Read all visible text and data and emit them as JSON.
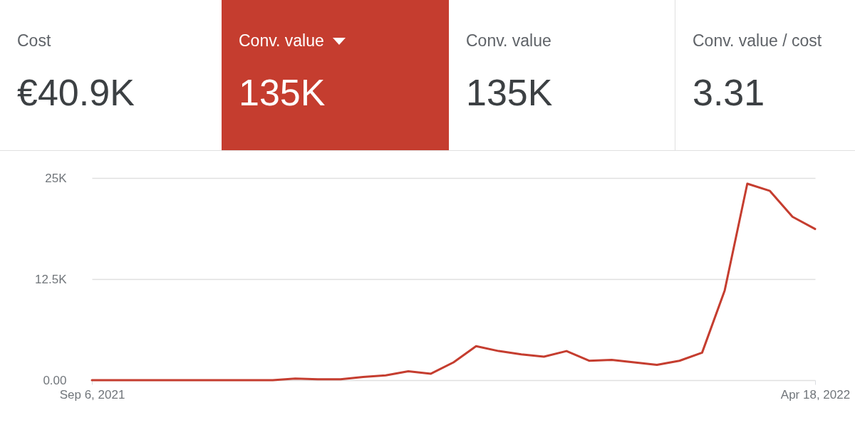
{
  "chart_data": [
    {
      "type": "other",
      "title": "Cost",
      "annotations": [
        "€40.9K"
      ]
    },
    {
      "type": "other",
      "title": "Conv. value",
      "annotations": [
        "135K"
      ],
      "color": "#c53d2f"
    },
    {
      "type": "other",
      "title": "Conv. value",
      "annotations": [
        "135K"
      ]
    },
    {
      "type": "other",
      "title": "Conv. value / cost",
      "annotations": [
        "3.31"
      ]
    },
    {
      "type": "line",
      "x": [
        "2021-09-06",
        "2021-09-13",
        "2021-09-20",
        "2021-09-27",
        "2021-10-04",
        "2021-10-11",
        "2021-10-18",
        "2021-10-25",
        "2021-11-01",
        "2021-11-08",
        "2021-11-15",
        "2021-11-22",
        "2021-11-29",
        "2021-12-06",
        "2021-12-13",
        "2021-12-20",
        "2021-12-27",
        "2022-01-03",
        "2022-01-10",
        "2022-01-17",
        "2022-01-24",
        "2022-01-31",
        "2022-02-07",
        "2022-02-14",
        "2022-02-21",
        "2022-02-28",
        "2022-03-07",
        "2022-03-14",
        "2022-03-21",
        "2022-03-28",
        "2022-04-04",
        "2022-04-11",
        "2022-04-18"
      ],
      "series": [
        {
          "color": "#c53d2f",
          "values": [
            0,
            0,
            0,
            0,
            0,
            0,
            0,
            0,
            0,
            200,
            100,
            100,
            400,
            600,
            1100,
            800,
            2200,
            4200,
            3600,
            3200,
            2900,
            3600,
            2400,
            2500,
            2200,
            1900,
            2400,
            3400,
            11100,
            24300,
            23400,
            20200,
            18700
          ]
        }
      ],
      "xlim": [
        "2021-09-06",
        "2022-04-18"
      ],
      "xticks": [
        {
          "value": "2021-09-06",
          "label": "Sep 6, 2021"
        },
        {
          "value": "2022-04-18",
          "label": "Apr 18, 2022"
        }
      ],
      "ylim": [
        0,
        25000
      ],
      "yticks": [
        {
          "value": 0,
          "label": "0.00"
        },
        {
          "value": 12500,
          "label": "12.5K"
        },
        {
          "value": 25000,
          "label": "25K"
        }
      ],
      "grid": "y",
      "legend": false,
      "marker": "none",
      "line_style": "solid"
    }
  ]
}
